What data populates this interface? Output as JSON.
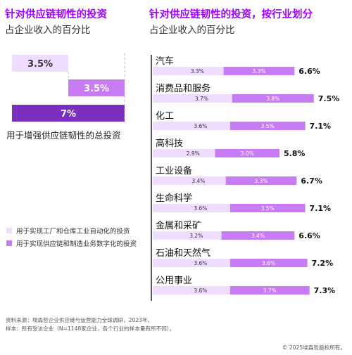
{
  "colors": {
    "accent": "#a100ff",
    "factory_automation": "#efdcff",
    "digitalization": "#c87cf3",
    "total": "#7b2fbe"
  },
  "left_panel": {
    "title": "针对供应链韧性的投资",
    "subtitle": "占企业收入的百分比",
    "total_label": "用于增强供应链韧性的总投资"
  },
  "right_panel": {
    "title": "针对供应链韧性的投资，按行业划分",
    "subtitle": "占企业收入的百分比"
  },
  "legend": {
    "factory_automation": "用于实现工厂和仓库工业自动化的投资",
    "digitalization": "用于实现供应链和制造业务数字化的投资"
  },
  "footnote": {
    "source": "资料来源：埃森哲企业供应链与运营能力全球调研，2023年。",
    "sample": "样本：所有受访企业（N=1148家企业，各个行业的样本量有所不同）。"
  },
  "copyright": "© 2025埃森哲版权所有。",
  "chart_data": [
    {
      "type": "bar",
      "subtype": "waterfall",
      "categories": [
        "用于实现工厂和仓库工业自动化的投资",
        "用于实现供应链和制造业务数字化的投资",
        "用于增强供应链韧性的总投资"
      ],
      "values": [
        3.5,
        3.5,
        7
      ],
      "labels": [
        "3.5%",
        "3.5%",
        "7%"
      ]
    },
    {
      "type": "bar",
      "subtype": "stacked-horizontal",
      "categories": [
        "汽车",
        "消费品和服务",
        "化工",
        "高科技",
        "工业设备",
        "生命科学",
        "金属和采矿",
        "石油和天然气",
        "公用事业"
      ],
      "series": [
        {
          "name": "用于实现工厂和仓库工业自动化的投资",
          "values": [
            3.3,
            3.7,
            3.6,
            2.9,
            3.4,
            3.6,
            3.2,
            3.6,
            3.6
          ]
        },
        {
          "name": "用于实现供应链和制造业务数字化的投资",
          "values": [
            3.3,
            3.8,
            3.5,
            3.0,
            3.3,
            3.5,
            3.4,
            3.6,
            3.7
          ]
        }
      ],
      "totals": [
        6.6,
        7.5,
        7.1,
        5.8,
        6.7,
        7.1,
        6.6,
        7.2,
        7.3
      ],
      "total_labels": [
        "6.6%",
        "7.5%",
        "7.1%",
        "5.8%",
        "6.7%",
        "7.1%",
        "6.6%",
        "7.2%",
        "7.3%"
      ],
      "segment_labels": [
        [
          "3.3%",
          "3.3%"
        ],
        [
          "3.7%",
          "3.8%"
        ],
        [
          "3.6%",
          "3.5%"
        ],
        [
          "2.9%",
          "3.0%"
        ],
        [
          "3.4%",
          "3.3%"
        ],
        [
          "3.6%",
          "3.5%"
        ],
        [
          "3.2%",
          "3.4%"
        ],
        [
          "3.6%",
          "3.6%"
        ],
        [
          "3.6%",
          "3.7%"
        ]
      ]
    }
  ]
}
